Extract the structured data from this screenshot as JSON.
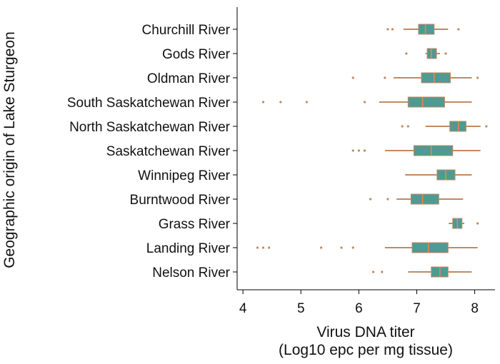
{
  "chart_data": {
    "type": "boxplot",
    "orientation": "horizontal",
    "xlabel": [
      "Virus DNA titer",
      "(Log10 epc per mg tissue)"
    ],
    "ylabel": "Geographic origin of Lake Sturgeon",
    "categories": [
      "Churchill River",
      "Gods River",
      "Oldman River",
      "South Saskatchewan River",
      "North Saskatchewan River",
      "Saskatchewan River",
      "Winnipeg River",
      "Burntwood River",
      "Grass River",
      "Landing River",
      "Nelson River"
    ],
    "boxes": [
      {
        "min": 6.77,
        "q1": 7.03,
        "median": 7.15,
        "q3": 7.3,
        "max": 7.54,
        "outliers": [
          6.5,
          6.58,
          7.72
        ]
      },
      {
        "min": 7.15,
        "q1": 7.18,
        "median": 7.25,
        "q3": 7.34,
        "max": 7.4,
        "outliers": [
          6.82,
          7.5
        ]
      },
      {
        "min": 6.6,
        "q1": 7.08,
        "median": 7.3,
        "q3": 7.58,
        "max": 7.95,
        "outliers": [
          5.9,
          6.45,
          8.05
        ]
      },
      {
        "min": 6.35,
        "q1": 6.85,
        "median": 7.1,
        "q3": 7.48,
        "max": 7.95,
        "outliers": [
          4.35,
          4.65,
          5.1,
          6.1
        ]
      },
      {
        "min": 7.15,
        "q1": 7.57,
        "median": 7.72,
        "q3": 7.85,
        "max": 8.1,
        "outliers": [
          6.75,
          6.85,
          8.2
        ]
      },
      {
        "min": 6.45,
        "q1": 6.95,
        "median": 7.25,
        "q3": 7.62,
        "max": 8.1,
        "outliers": [
          5.9,
          6.0,
          6.1
        ]
      },
      {
        "min": 6.8,
        "q1": 7.35,
        "median": 7.5,
        "q3": 7.66,
        "max": 7.95,
        "outliers": []
      },
      {
        "min": 6.65,
        "q1": 6.9,
        "median": 7.1,
        "q3": 7.38,
        "max": 7.8,
        "outliers": [
          6.2,
          6.5
        ]
      },
      {
        "min": 7.55,
        "q1": 7.62,
        "median": 7.7,
        "q3": 7.78,
        "max": 7.82,
        "outliers": [
          8.05
        ]
      },
      {
        "min": 6.45,
        "q1": 6.92,
        "median": 7.2,
        "q3": 7.54,
        "max": 8.05,
        "outliers": [
          4.25,
          4.35,
          4.45,
          5.35,
          5.7,
          5.9
        ]
      },
      {
        "min": 6.85,
        "q1": 7.25,
        "median": 7.4,
        "q3": 7.54,
        "max": 7.95,
        "outliers": [
          6.25,
          6.4
        ]
      }
    ],
    "box_color": "#4f9a92",
    "edge_color": "#c08a62",
    "median_color": "#e8894a",
    "xlim": [
      3.9,
      8.35
    ],
    "xticks": [
      4,
      5,
      6,
      7,
      8
    ]
  }
}
